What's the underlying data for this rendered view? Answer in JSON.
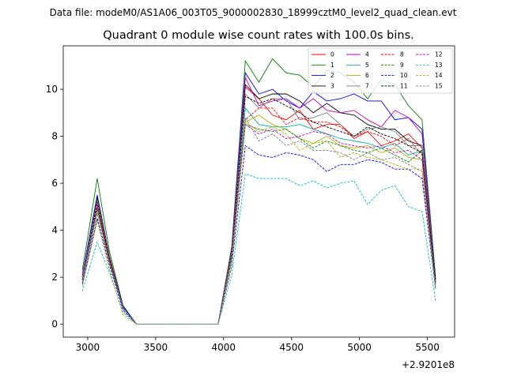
{
  "chart_data": {
    "type": "line",
    "suptitle": "Data file: modeM0/AS1A06_003T05_9000002830_18999cztM0_level2_quad_clean.evt",
    "title": "Quadrant 0 module wise count rates with 100.0s bins.",
    "xlabel": "",
    "ylabel": "",
    "x_offset_label": "+2.9201e8",
    "x_offset": 292010000,
    "xlim": [
      292012820,
      292015700
    ],
    "ylim": [
      -0.55,
      11.85
    ],
    "xticks": [
      292013000,
      292013500,
      292014000,
      292014500,
      292015000,
      292015500
    ],
    "xtick_labels": [
      "3000",
      "3500",
      "4000",
      "4500",
      "5000",
      "5500"
    ],
    "yticks": [
      0,
      2,
      4,
      6,
      8,
      10
    ],
    "ytick_labels": [
      "0",
      "2",
      "4",
      "6",
      "8",
      "10"
    ],
    "grid": false,
    "legend_position": "top-right",
    "x": [
      292012960,
      292013070,
      292013160,
      292013260,
      292013360,
      292013460,
      292013560,
      292013660,
      292013760,
      292013860,
      292013960,
      292014060,
      292014160,
      292014260,
      292014360,
      292014460,
      292014560,
      292014660,
      292014760,
      292014860,
      292014960,
      292015060,
      292015160,
      292015260,
      292015360,
      292015460,
      292015560
    ],
    "series": [
      {
        "name": "0",
        "color": "#ff0000",
        "dash": "solid",
        "values": [
          2.0,
          5.4,
          2.9,
          0.75,
          0,
          0,
          0,
          0,
          0,
          0,
          0,
          3.0,
          10.1,
          9.6,
          8.9,
          8.7,
          9.1,
          8.3,
          8.5,
          8.5,
          7.9,
          8.2,
          7.6,
          7.8,
          8.1,
          7.5,
          1.9
        ]
      },
      {
        "name": "1",
        "color": "#008000",
        "dash": "solid",
        "values": [
          2.3,
          6.2,
          3.1,
          0.8,
          0,
          0,
          0,
          0,
          0,
          0,
          0,
          3.3,
          11.2,
          10.3,
          11.3,
          10.7,
          10.6,
          10.1,
          10.8,
          10.7,
          10.3,
          9.6,
          10.4,
          10.2,
          9.3,
          8.7,
          2.0
        ]
      },
      {
        "name": "2",
        "color": "#0000ff",
        "dash": "solid",
        "values": [
          2.1,
          5.5,
          2.9,
          0.75,
          0,
          0,
          0,
          0,
          0,
          0,
          0,
          3.2,
          10.7,
          9.8,
          10.0,
          9.5,
          9.2,
          9.9,
          9.5,
          9.6,
          9.8,
          9.5,
          9.5,
          8.7,
          8.8,
          8.3,
          1.9
        ]
      },
      {
        "name": "3",
        "color": "#000000",
        "dash": "solid",
        "values": [
          2.0,
          5.4,
          2.9,
          0.7,
          0,
          0,
          0,
          0,
          0,
          0,
          0,
          3.1,
          10.2,
          9.6,
          9.8,
          9.8,
          9.5,
          9.0,
          9.4,
          9.0,
          8.9,
          8.5,
          8.3,
          8.3,
          7.8,
          7.6,
          1.9
        ]
      },
      {
        "name": "4",
        "color": "#c000c0",
        "dash": "solid",
        "values": [
          2.0,
          5.3,
          2.8,
          0.7,
          0,
          0,
          0,
          0,
          0,
          0,
          0,
          3.1,
          10.5,
          9.3,
          9.5,
          9.6,
          9.2,
          9.6,
          9.1,
          9.0,
          9.1,
          8.7,
          8.4,
          9.1,
          8.8,
          8.1,
          1.8
        ]
      },
      {
        "name": "5",
        "color": "#00b0a0",
        "dash": "solid",
        "values": [
          1.9,
          5.0,
          2.7,
          0.7,
          0,
          0,
          0,
          0,
          0,
          0,
          0,
          2.9,
          9.2,
          8.5,
          8.4,
          8.4,
          8.5,
          8.3,
          8.1,
          7.9,
          7.8,
          7.7,
          7.5,
          7.7,
          7.2,
          7.4,
          1.7
        ]
      },
      {
        "name": "6",
        "color": "#b0b000",
        "dash": "solid",
        "values": [
          1.8,
          4.8,
          2.6,
          0.7,
          0,
          0,
          0,
          0,
          0,
          0,
          0,
          2.8,
          8.6,
          8.9,
          8.5,
          8.3,
          7.9,
          7.7,
          8.0,
          7.6,
          7.5,
          7.6,
          7.3,
          7.5,
          7.1,
          7.0,
          1.6
        ]
      },
      {
        "name": "7",
        "color": "#808080",
        "dash": "solid",
        "values": [
          2.0,
          5.3,
          2.9,
          0.7,
          0,
          0,
          0,
          0,
          0,
          0,
          0,
          3.1,
          9.8,
          9.2,
          9.6,
          9.6,
          8.7,
          8.8,
          9.0,
          8.5,
          8.0,
          8.3,
          8.4,
          8.2,
          7.6,
          7.6,
          1.8
        ]
      },
      {
        "name": "8",
        "color": "#ff0000",
        "dash": "dashed",
        "values": [
          1.9,
          5.1,
          2.8,
          0.7,
          0,
          0,
          0,
          0,
          0,
          0,
          0,
          3.0,
          8.7,
          9.2,
          9.2,
          8.5,
          8.8,
          8.6,
          8.6,
          8.4,
          8.0,
          8.2,
          8.0,
          7.6,
          7.9,
          7.2,
          1.7
        ]
      },
      {
        "name": "9",
        "color": "#008000",
        "dash": "dashed",
        "values": [
          1.8,
          4.9,
          2.7,
          0.7,
          0,
          0,
          0,
          0,
          0,
          0,
          0,
          2.8,
          8.5,
          8.3,
          8.2,
          8.3,
          7.9,
          7.5,
          7.8,
          7.6,
          7.4,
          7.3,
          7.5,
          7.2,
          6.9,
          7.4,
          1.7
        ]
      },
      {
        "name": "10",
        "color": "#0000ff",
        "dash": "dashed",
        "values": [
          1.7,
          4.5,
          2.5,
          0.6,
          0,
          0,
          0,
          0,
          0,
          0,
          0,
          2.5,
          7.6,
          7.2,
          7.1,
          7.3,
          7.2,
          7.0,
          6.5,
          6.8,
          6.8,
          7.0,
          6.9,
          6.6,
          6.6,
          6.2,
          1.5
        ]
      },
      {
        "name": "11",
        "color": "#000000",
        "dash": "dashed",
        "values": [
          1.9,
          5.2,
          2.8,
          0.7,
          0,
          0,
          0,
          0,
          0,
          0,
          0,
          3.0,
          9.7,
          9.4,
          9.6,
          9.3,
          9.0,
          8.6,
          8.4,
          8.2,
          8.0,
          8.4,
          8.1,
          7.9,
          7.6,
          7.3,
          1.8
        ]
      },
      {
        "name": "12",
        "color": "#c000c0",
        "dash": "dashed",
        "values": [
          1.9,
          5.0,
          2.7,
          0.7,
          0,
          0,
          0,
          0,
          0,
          0,
          0,
          2.9,
          8.5,
          8.1,
          8.3,
          7.9,
          8.0,
          8.2,
          8.1,
          7.7,
          7.6,
          7.5,
          7.6,
          7.3,
          7.4,
          7.0,
          1.6
        ]
      },
      {
        "name": "13",
        "color": "#00c0c0",
        "dash": "dashed",
        "values": [
          1.4,
          3.5,
          2.2,
          0.5,
          0,
          0,
          0,
          0,
          0,
          0,
          0,
          2.1,
          6.4,
          6.2,
          6.2,
          6.2,
          5.9,
          6.1,
          5.8,
          6.0,
          6.1,
          5.1,
          5.7,
          5.9,
          5.0,
          4.8,
          1.0
        ]
      },
      {
        "name": "14",
        "color": "#b0b000",
        "dash": "dashed",
        "values": [
          1.6,
          4.4,
          2.3,
          0.4,
          0,
          0,
          0,
          0,
          0,
          0,
          0,
          2.6,
          8.6,
          8.2,
          8.4,
          8.1,
          7.4,
          7.7,
          7.8,
          7.1,
          7.3,
          7.1,
          7.0,
          6.8,
          6.6,
          6.6,
          1.5
        ]
      },
      {
        "name": "15",
        "color": "#808080",
        "dash": "dashed",
        "values": [
          1.8,
          4.7,
          2.6,
          0.7,
          0,
          0,
          0,
          0,
          0,
          0,
          0,
          2.9,
          8.8,
          7.8,
          8.1,
          7.6,
          7.8,
          7.4,
          7.4,
          7.3,
          7.0,
          7.3,
          7.0,
          7.1,
          6.8,
          6.5,
          1.6
        ]
      }
    ]
  }
}
